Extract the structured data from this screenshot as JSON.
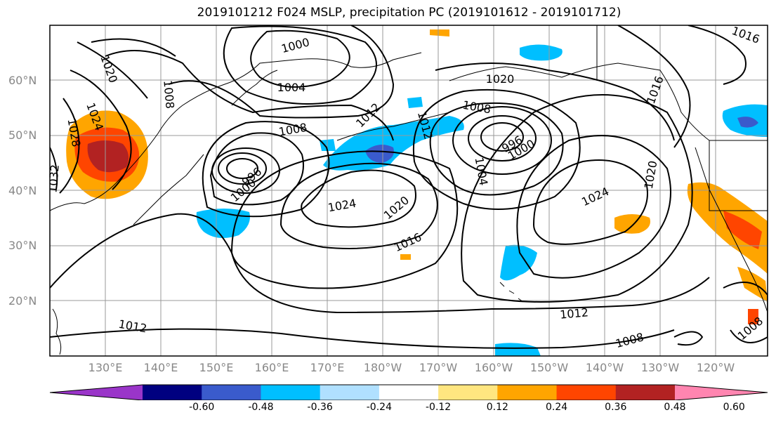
{
  "title": "2019101212 F024 MSLP, precipitation PC (2019101612 - 2019101712)",
  "map": {
    "lat_labels": [
      "60°N",
      "50°N",
      "40°N",
      "30°N",
      "20°N"
    ],
    "lon_labels": [
      "130°E",
      "140°E",
      "150°E",
      "160°E",
      "170°E",
      "180°W",
      "170°W",
      "160°W",
      "150°W",
      "140°W",
      "130°W",
      "120°W"
    ],
    "contour_labels": {
      "c1000a": "1000",
      "c1004a": "1004",
      "c1008a": "1008",
      "c1008b": "1008",
      "c1012a": "1012",
      "c1012b": "1012",
      "c1012c": "1012",
      "c1016a": "1016",
      "c1016b": "1016",
      "c1016c": "1016",
      "c1020a": "1020",
      "c1020b": "1020",
      "c1020c": "1020",
      "c1020d": "1020",
      "c1024a": "1024",
      "c1024b": "1024",
      "c1024c": "1024",
      "c1028a": "1028",
      "c1032a": "1032",
      "c996a": "996",
      "c1000b": "1000",
      "c1004b": "1004",
      "c1008c": "1008",
      "c996b": "996",
      "c1000c": "1000",
      "c1008d": "1008",
      "c1008e": "1008",
      "c1012d": "1012",
      "c1016d": "1016",
      "c1008f": "1008",
      "c1020e": "1020"
    }
  },
  "colorbar": {
    "colors": [
      "#9a35c9",
      "#000080",
      "#3a5bcc",
      "#00bfff",
      "#b0e0ff",
      "#ffffff",
      "#ffe680",
      "#ffa500",
      "#ff4500",
      "#b22222",
      "#ff85b0"
    ],
    "tick_labels": [
      "-0.60",
      "-0.48",
      "-0.36",
      "-0.24",
      "-0.12",
      "0.12",
      "0.24",
      "0.36",
      "0.48",
      "0.60"
    ]
  },
  "colors": {
    "grid": "#999999",
    "contour": "#000000",
    "coast": "#000000"
  }
}
